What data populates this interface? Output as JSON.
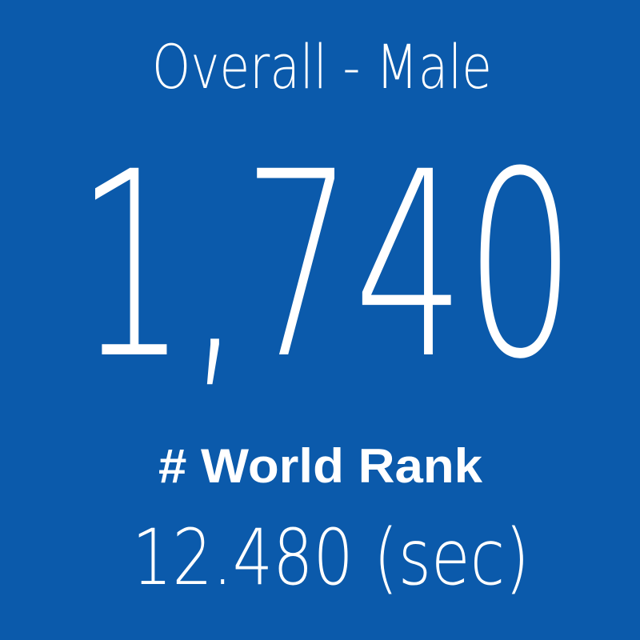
{
  "card": {
    "title": "Overall - Male",
    "value": "1,740",
    "label": "# World Rank",
    "time": "12.480 (sec)"
  }
}
